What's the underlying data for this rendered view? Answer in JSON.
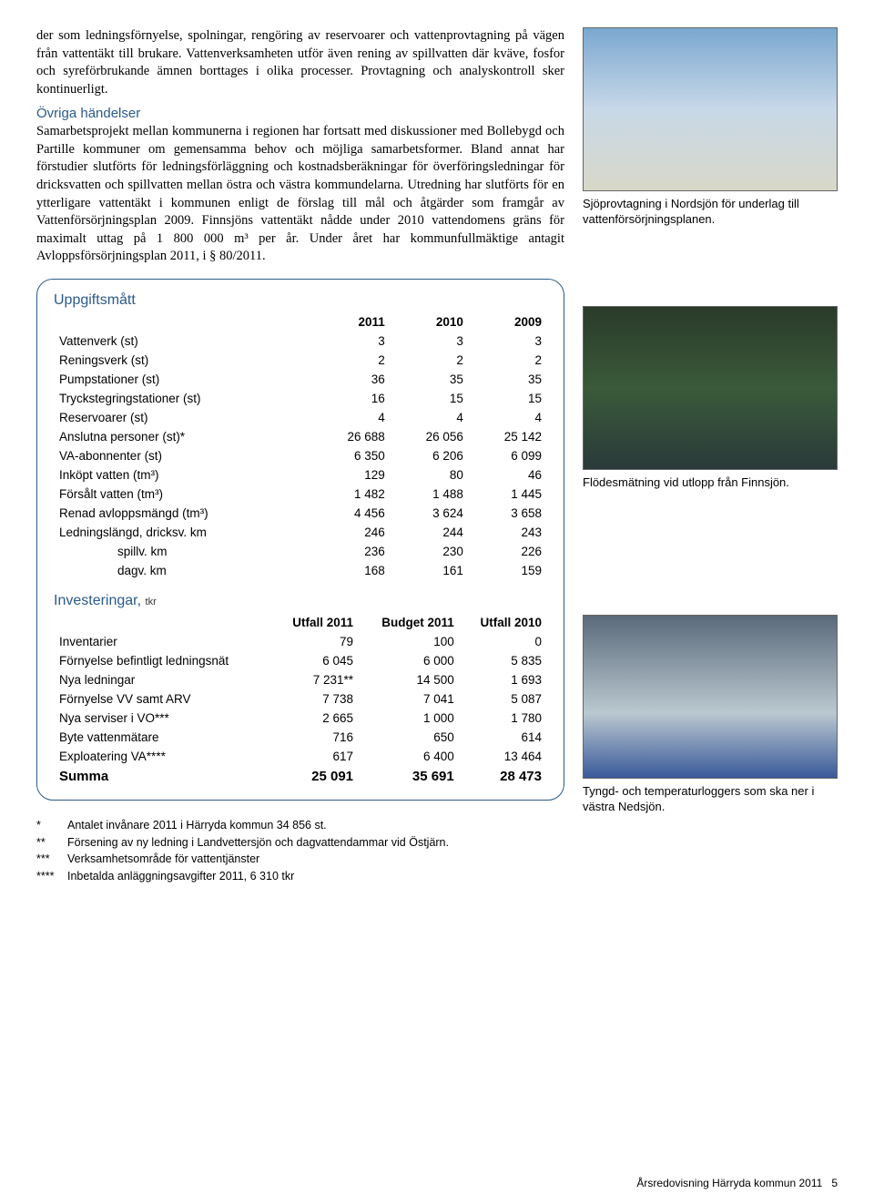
{
  "paragraph1": "der som ledningsförnyelse, spolningar, rengöring av reservoarer och vattenprovtagning på vägen från vattentäkt till brukare. Vattenverksamheten utför även rening av spillvatten där kväve, fosfor och syreförbrukande ämnen borttages i olika processer. Provtagning och analyskontroll sker kontinuerligt.",
  "subheading": "Övriga händelser",
  "paragraph2": "Samarbetsprojekt mellan kommunerna i regionen har fortsatt med diskussioner med Bollebygd och Partille kommuner om gemensamma behov och möjliga samarbetsformer. Bland annat har förstudier slutförts för ledningsförläggning och kostnadsberäkningar för överföringsledningar för dricksvatten och spillvatten mellan östra och västra kommundelarna. Utredning har slutförts för en ytterligare vattentäkt i kommunen enligt de förslag till mål och åtgärder som framgår av Vattenförsörjningsplan 2009. Finnsjöns vattentäkt nådde under 2010 vattendomens gräns för maximalt uttag på 1 800 000 m³ per år. Under året har kommunfullmäktige antagit Avloppsförsörjningsplan 2011, i § 80/2011.",
  "caption1": "Sjöprovtagning i Nordsjön för underlag till vattenförsörjningsplanen.",
  "caption2": "Flödesmätning vid utlopp från Finnsjön.",
  "caption3": "Tyngd- och temperaturloggers som ska ner i västra Nedsjön.",
  "table1": {
    "title": "Uppgiftsmått",
    "headers": [
      "2011",
      "2010",
      "2009"
    ],
    "rows": [
      {
        "label": "Vattenverk (st)",
        "v": [
          "3",
          "3",
          "3"
        ]
      },
      {
        "label": "Reningsverk (st)",
        "v": [
          "2",
          "2",
          "2"
        ]
      },
      {
        "label": "Pumpstationer (st)",
        "v": [
          "36",
          "35",
          "35"
        ]
      },
      {
        "label": "Tryckstegringstationer (st)",
        "v": [
          "16",
          "15",
          "15"
        ]
      },
      {
        "label": "Reservoarer (st)",
        "v": [
          "4",
          "4",
          "4"
        ]
      },
      {
        "label": "Anslutna personer (st)*",
        "v": [
          "26 688",
          "26 056",
          "25 142"
        ]
      },
      {
        "label": "VA-abonnenter (st)",
        "v": [
          "6 350",
          "6 206",
          "6 099"
        ]
      },
      {
        "label": "Inköpt vatten (tm³)",
        "v": [
          "129",
          "80",
          "46"
        ]
      },
      {
        "label": "Försålt vatten (tm³)",
        "v": [
          "1 482",
          "1 488",
          "1 445"
        ]
      },
      {
        "label": "Renad avloppsmängd (tm³)",
        "v": [
          "4 456",
          "3 624",
          "3 658"
        ]
      },
      {
        "label": "Ledningslängd, dricksv. km",
        "v": [
          "246",
          "244",
          "243"
        ]
      },
      {
        "label": "spillv. km",
        "indent": true,
        "v": [
          "236",
          "230",
          "226"
        ]
      },
      {
        "label": "dagv. km",
        "indent": true,
        "v": [
          "168",
          "161",
          "159"
        ]
      }
    ]
  },
  "table2": {
    "title": "Investeringar,",
    "title_unit": "tkr",
    "headers": [
      "Utfall 2011",
      "Budget 2011",
      "Utfall 2010"
    ],
    "rows": [
      {
        "label": "Inventarier",
        "v": [
          "79",
          "100",
          "0"
        ]
      },
      {
        "label": "Förnyelse befintligt ledningsnät",
        "v": [
          "6 045",
          "6 000",
          "5 835"
        ]
      },
      {
        "label": "Nya ledningar",
        "v": [
          "7 231**",
          "14 500",
          "1 693"
        ]
      },
      {
        "label": "Förnyelse VV samt ARV",
        "v": [
          "7 738",
          "7 041",
          "5 087"
        ]
      },
      {
        "label": "Nya serviser i VO***",
        "v": [
          "2 665",
          "1 000",
          "1 780"
        ]
      },
      {
        "label": "Byte vattenmätare",
        "v": [
          "716",
          "650",
          "614"
        ]
      },
      {
        "label": "Exploatering VA****",
        "v": [
          "617",
          "6 400",
          "13 464"
        ]
      }
    ],
    "sum": {
      "label": "Summa",
      "v": [
        "25 091",
        "35 691",
        "28 473"
      ]
    }
  },
  "footnotes": [
    {
      "star": "*",
      "text": "Antalet invånare 2011 i Härryda kommun 34 856 st."
    },
    {
      "star": "**",
      "text": "Försening av ny ledning i Landvettersjön och dagvattendammar vid Östjärn."
    },
    {
      "star": "***",
      "text": "Verksamhetsområde för vattentjänster"
    },
    {
      "star": "****",
      "text": "Inbetalda anläggningsavgifter 2011, 6 310 tkr"
    }
  ],
  "footer_text": "Årsredovisning Härryda kommun 2011",
  "footer_page": "5"
}
